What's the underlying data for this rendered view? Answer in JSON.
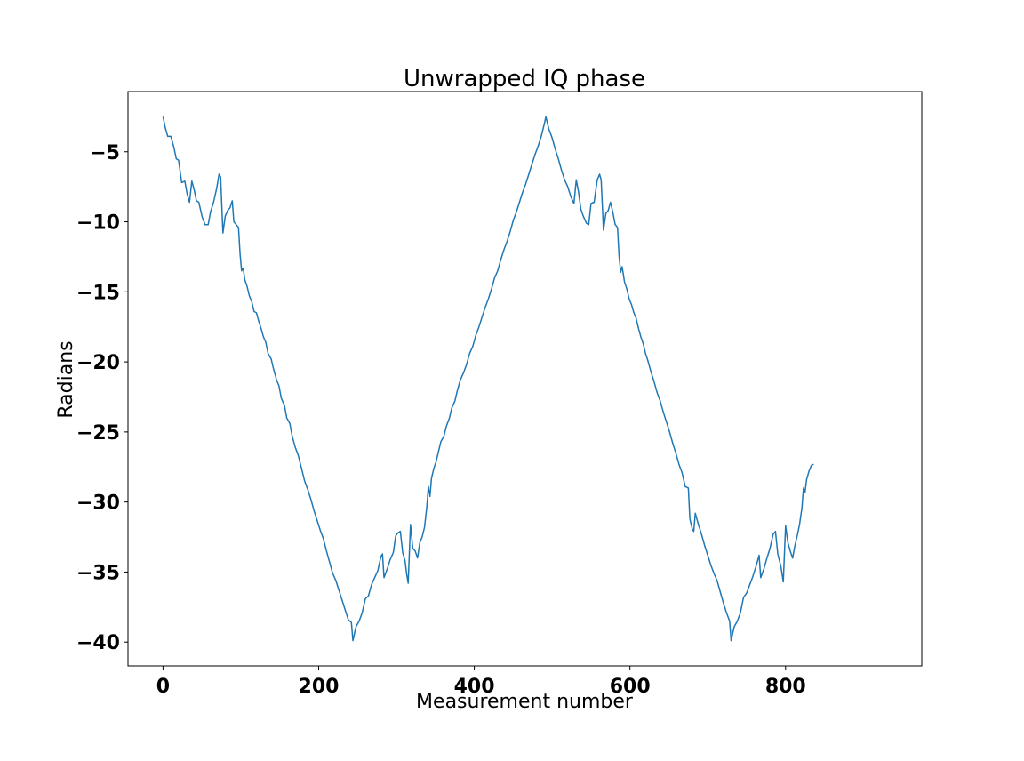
{
  "chart_data": {
    "type": "line",
    "title": "Unwrapped IQ phase",
    "xlabel": "Measurement number",
    "ylabel": "Radians",
    "xlim": [
      -45,
      975
    ],
    "ylim": [
      -41.7,
      -0.7
    ],
    "xticks": [
      0,
      200,
      400,
      600,
      800
    ],
    "xtick_labels": [
      "0",
      "200",
      "400",
      "600",
      "800"
    ],
    "yticks": [
      -5,
      -10,
      -15,
      -20,
      -25,
      -30,
      -35,
      -40
    ],
    "ytick_labels": [
      "−5",
      "−10",
      "−15",
      "−20",
      "−25",
      "−30",
      "−35",
      "−40"
    ],
    "grid": false,
    "series": [
      {
        "color": "#1f77b4",
        "points": [
          [
            0,
            -2.5
          ],
          [
            3,
            -3.3
          ],
          [
            6,
            -3.9
          ],
          [
            10,
            -3.9
          ],
          [
            14,
            -4.7
          ],
          [
            17,
            -5.5
          ],
          [
            20,
            -5.6
          ],
          [
            24,
            -7.2
          ],
          [
            28,
            -7.1
          ],
          [
            31,
            -8.0
          ],
          [
            34,
            -8.6
          ],
          [
            37,
            -7.1
          ],
          [
            40,
            -7.7
          ],
          [
            43,
            -8.5
          ],
          [
            46,
            -8.6
          ],
          [
            50,
            -9.6
          ],
          [
            54,
            -10.2
          ],
          [
            58,
            -10.2
          ],
          [
            61,
            -9.3
          ],
          [
            65,
            -8.6
          ],
          [
            69,
            -7.6
          ],
          [
            72,
            -6.6
          ],
          [
            74,
            -6.8
          ],
          [
            77,
            -10.8
          ],
          [
            80,
            -9.6
          ],
          [
            83,
            -9.2
          ],
          [
            86,
            -9.0
          ],
          [
            89,
            -8.5
          ],
          [
            91,
            -10.0
          ],
          [
            94,
            -10.2
          ],
          [
            97,
            -10.4
          ],
          [
            99,
            -12.3
          ],
          [
            101,
            -13.5
          ],
          [
            103,
            -13.3
          ],
          [
            105,
            -14.1
          ],
          [
            108,
            -14.6
          ],
          [
            111,
            -15.3
          ],
          [
            114,
            -15.7
          ],
          [
            117,
            -16.4
          ],
          [
            120,
            -16.5
          ],
          [
            123,
            -17.1
          ],
          [
            126,
            -17.6
          ],
          [
            129,
            -18.2
          ],
          [
            132,
            -18.6
          ],
          [
            135,
            -19.4
          ],
          [
            139,
            -19.8
          ],
          [
            142,
            -20.5
          ],
          [
            146,
            -21.3
          ],
          [
            149,
            -21.7
          ],
          [
            152,
            -22.6
          ],
          [
            156,
            -23.1
          ],
          [
            159,
            -24.0
          ],
          [
            163,
            -24.4
          ],
          [
            166,
            -25.3
          ],
          [
            170,
            -26.1
          ],
          [
            174,
            -26.7
          ],
          [
            178,
            -27.6
          ],
          [
            182,
            -28.5
          ],
          [
            186,
            -29.1
          ],
          [
            190,
            -29.8
          ],
          [
            194,
            -30.6
          ],
          [
            198,
            -31.3
          ],
          [
            202,
            -32.0
          ],
          [
            206,
            -32.6
          ],
          [
            210,
            -33.5
          ],
          [
            214,
            -34.3
          ],
          [
            218,
            -35.1
          ],
          [
            222,
            -35.6
          ],
          [
            226,
            -36.3
          ],
          [
            230,
            -37.0
          ],
          [
            234,
            -37.7
          ],
          [
            238,
            -38.4
          ],
          [
            242,
            -38.6
          ],
          [
            244,
            -39.9
          ],
          [
            248,
            -38.9
          ],
          [
            252,
            -38.5
          ],
          [
            256,
            -37.9
          ],
          [
            260,
            -36.9
          ],
          [
            264,
            -36.7
          ],
          [
            268,
            -35.9
          ],
          [
            272,
            -35.4
          ],
          [
            276,
            -34.9
          ],
          [
            280,
            -33.9
          ],
          [
            282,
            -33.7
          ],
          [
            284,
            -35.4
          ],
          [
            288,
            -34.8
          ],
          [
            292,
            -34.1
          ],
          [
            296,
            -33.6
          ],
          [
            299,
            -32.4
          ],
          [
            302,
            -32.2
          ],
          [
            305,
            -32.1
          ],
          [
            308,
            -33.6
          ],
          [
            311,
            -34.2
          ],
          [
            313,
            -35.1
          ],
          [
            315,
            -35.8
          ],
          [
            318,
            -31.6
          ],
          [
            321,
            -33.3
          ],
          [
            324,
            -33.5
          ],
          [
            327,
            -34.0
          ],
          [
            330,
            -32.9
          ],
          [
            333,
            -32.5
          ],
          [
            336,
            -31.8
          ],
          [
            339,
            -30.3
          ],
          [
            341,
            -28.9
          ],
          [
            343,
            -29.6
          ],
          [
            345,
            -28.3
          ],
          [
            348,
            -27.6
          ],
          [
            351,
            -27.1
          ],
          [
            354,
            -26.4
          ],
          [
            357,
            -25.7
          ],
          [
            361,
            -25.3
          ],
          [
            364,
            -24.6
          ],
          [
            368,
            -24.0
          ],
          [
            371,
            -23.3
          ],
          [
            375,
            -22.8
          ],
          [
            378,
            -22.1
          ],
          [
            382,
            -21.3
          ],
          [
            386,
            -20.8
          ],
          [
            390,
            -20.2
          ],
          [
            394,
            -19.4
          ],
          [
            398,
            -18.9
          ],
          [
            402,
            -18.1
          ],
          [
            406,
            -17.5
          ],
          [
            410,
            -16.8
          ],
          [
            414,
            -16.1
          ],
          [
            418,
            -15.5
          ],
          [
            422,
            -14.8
          ],
          [
            426,
            -14.0
          ],
          [
            430,
            -13.5
          ],
          [
            434,
            -12.7
          ],
          [
            438,
            -12.0
          ],
          [
            442,
            -11.4
          ],
          [
            446,
            -10.7
          ],
          [
            450,
            -9.9
          ],
          [
            454,
            -9.3
          ],
          [
            458,
            -8.6
          ],
          [
            462,
            -7.9
          ],
          [
            466,
            -7.3
          ],
          [
            470,
            -6.6
          ],
          [
            474,
            -5.9
          ],
          [
            478,
            -5.2
          ],
          [
            482,
            -4.6
          ],
          [
            486,
            -3.9
          ],
          [
            490,
            -3.0
          ],
          [
            492,
            -2.5
          ],
          [
            496,
            -3.4
          ],
          [
            500,
            -4.0
          ],
          [
            504,
            -4.8
          ],
          [
            508,
            -5.5
          ],
          [
            512,
            -6.3
          ],
          [
            516,
            -7.0
          ],
          [
            520,
            -7.5
          ],
          [
            524,
            -8.2
          ],
          [
            528,
            -8.7
          ],
          [
            531,
            -7.0
          ],
          [
            534,
            -7.9
          ],
          [
            537,
            -9.1
          ],
          [
            540,
            -9.6
          ],
          [
            544,
            -10.1
          ],
          [
            547,
            -10.2
          ],
          [
            550,
            -8.7
          ],
          [
            554,
            -8.6
          ],
          [
            558,
            -7.0
          ],
          [
            561,
            -6.6
          ],
          [
            563,
            -7.0
          ],
          [
            566,
            -10.6
          ],
          [
            569,
            -9.4
          ],
          [
            572,
            -9.2
          ],
          [
            575,
            -8.6
          ],
          [
            578,
            -9.3
          ],
          [
            581,
            -10.2
          ],
          [
            584,
            -10.4
          ],
          [
            586,
            -12.4
          ],
          [
            588,
            -13.6
          ],
          [
            590,
            -13.2
          ],
          [
            593,
            -14.3
          ],
          [
            596,
            -14.8
          ],
          [
            599,
            -15.5
          ],
          [
            602,
            -15.9
          ],
          [
            605,
            -16.5
          ],
          [
            608,
            -16.9
          ],
          [
            611,
            -17.6
          ],
          [
            614,
            -18.2
          ],
          [
            617,
            -18.7
          ],
          [
            620,
            -19.4
          ],
          [
            623,
            -19.9
          ],
          [
            627,
            -20.7
          ],
          [
            631,
            -21.4
          ],
          [
            635,
            -22.2
          ],
          [
            639,
            -22.8
          ],
          [
            643,
            -23.6
          ],
          [
            647,
            -24.3
          ],
          [
            651,
            -25.0
          ],
          [
            655,
            -25.8
          ],
          [
            659,
            -26.5
          ],
          [
            663,
            -27.3
          ],
          [
            667,
            -27.9
          ],
          [
            671,
            -28.9
          ],
          [
            675,
            -29.0
          ],
          [
            677,
            -31.2
          ],
          [
            680,
            -31.9
          ],
          [
            682,
            -32.1
          ],
          [
            684,
            -30.8
          ],
          [
            688,
            -31.6
          ],
          [
            692,
            -32.3
          ],
          [
            696,
            -33.1
          ],
          [
            700,
            -33.8
          ],
          [
            704,
            -34.5
          ],
          [
            708,
            -35.1
          ],
          [
            712,
            -35.6
          ],
          [
            716,
            -36.4
          ],
          [
            720,
            -37.2
          ],
          [
            724,
            -37.9
          ],
          [
            728,
            -38.5
          ],
          [
            730,
            -39.9
          ],
          [
            734,
            -38.9
          ],
          [
            738,
            -38.5
          ],
          [
            742,
            -37.9
          ],
          [
            746,
            -36.8
          ],
          [
            750,
            -36.5
          ],
          [
            754,
            -35.9
          ],
          [
            758,
            -35.3
          ],
          [
            762,
            -34.6
          ],
          [
            766,
            -33.8
          ],
          [
            768,
            -35.4
          ],
          [
            772,
            -34.8
          ],
          [
            776,
            -34.0
          ],
          [
            780,
            -33.3
          ],
          [
            784,
            -32.3
          ],
          [
            787,
            -32.1
          ],
          [
            790,
            -33.7
          ],
          [
            794,
            -34.6
          ],
          [
            797,
            -35.7
          ],
          [
            800,
            -31.7
          ],
          [
            803,
            -32.9
          ],
          [
            806,
            -33.5
          ],
          [
            809,
            -34.0
          ],
          [
            812,
            -33.1
          ],
          [
            815,
            -32.4
          ],
          [
            818,
            -31.6
          ],
          [
            821,
            -30.4
          ],
          [
            823,
            -29.0
          ],
          [
            825,
            -29.3
          ],
          [
            827,
            -28.4
          ],
          [
            830,
            -27.8
          ],
          [
            833,
            -27.4
          ],
          [
            836,
            -27.3
          ]
        ]
      }
    ]
  }
}
